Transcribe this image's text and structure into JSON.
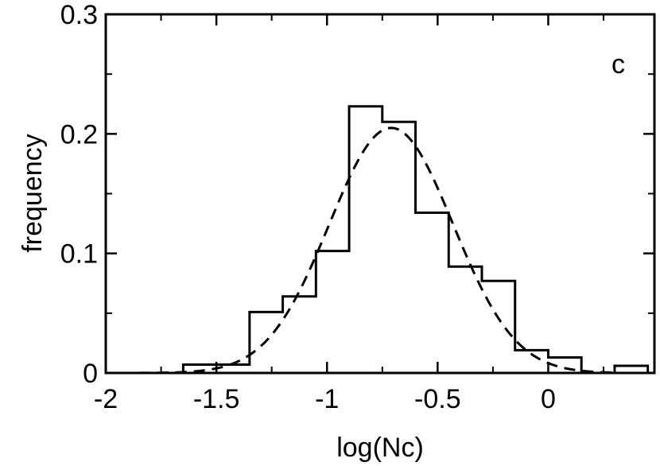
{
  "chart_data": {
    "type": "histogram",
    "panel_label": "c",
    "title": "",
    "xlabel": "log(Nc)",
    "ylabel": "frequency",
    "xlim": [
      -2.0,
      0.48
    ],
    "ylim": [
      0,
      0.3
    ],
    "x_ticks": [
      -2,
      -1.5,
      -1,
      -0.5,
      0
    ],
    "x_tick_labels": [
      "-2",
      "-1.5",
      "-1",
      "-0.5",
      "0"
    ],
    "y_ticks": [
      0,
      0.1,
      0.2,
      0.3
    ],
    "y_tick_labels": [
      "0",
      "0.1",
      "0.2",
      "0.3"
    ],
    "grid": false,
    "histogram": {
      "style": "solid-step",
      "bin_edges": [
        -1.65,
        -1.35,
        -1.2,
        -1.05,
        -0.9,
        -0.75,
        -0.6,
        -0.45,
        -0.3,
        -0.15,
        0.0,
        0.15,
        0.3,
        0.45
      ],
      "values": [
        0.007,
        0.051,
        0.064,
        0.102,
        0.223,
        0.21,
        0.134,
        0.089,
        0.077,
        0.019,
        0.013,
        0.0,
        0.006
      ]
    },
    "fit_curve": {
      "style": "dashed",
      "kind": "gaussian",
      "mean": -0.71,
      "sigma": 0.28,
      "peak": 0.205,
      "x_range": [
        -1.85,
        0.3
      ]
    }
  },
  "colors": {
    "line": "#000000",
    "background": "#ffffff"
  }
}
